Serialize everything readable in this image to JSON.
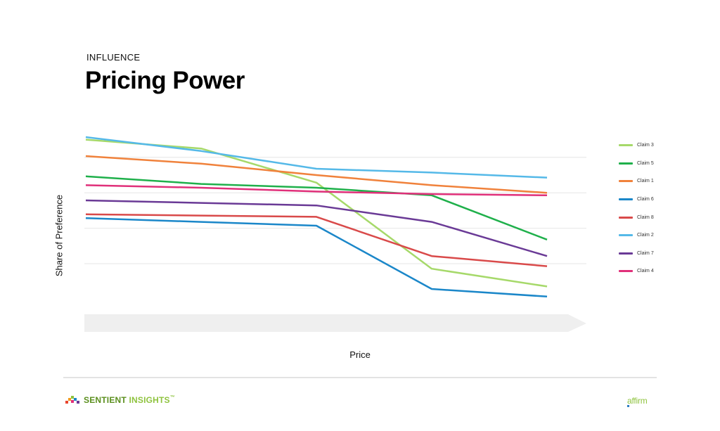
{
  "header": {
    "eyebrow": "INFLUENCE",
    "title": "Pricing Power"
  },
  "chart_data": {
    "type": "line",
    "title": "Pricing Power",
    "xlabel": "Price",
    "ylabel": "Share of Preference",
    "x": [
      1,
      2,
      3,
      4,
      5
    ],
    "ylim": [
      0,
      7
    ],
    "grid": true,
    "legend_position": "right",
    "series": [
      {
        "name": "Claim 3",
        "color": "#a6d96a",
        "values": [
          6.9,
          6.55,
          5.2,
          1.8,
          1.1
        ]
      },
      {
        "name": "Claim 5",
        "color": "#1fb04b",
        "values": [
          5.45,
          5.15,
          5.0,
          4.7,
          2.95
        ]
      },
      {
        "name": "Claim 1",
        "color": "#f0823c",
        "values": [
          6.25,
          5.95,
          5.5,
          5.1,
          4.8
        ]
      },
      {
        "name": "Claim 6",
        "color": "#1b87c9",
        "values": [
          3.8,
          3.65,
          3.5,
          1.0,
          0.7
        ]
      },
      {
        "name": "Claim 8",
        "color": "#d94a4a",
        "values": [
          3.95,
          3.9,
          3.85,
          2.3,
          1.9
        ]
      },
      {
        "name": "Claim 2",
        "color": "#55b9e8",
        "values": [
          7.0,
          6.45,
          5.75,
          5.6,
          5.4
        ]
      },
      {
        "name": "Claim 7",
        "color": "#6a3a96",
        "values": [
          4.5,
          4.4,
          4.3,
          3.65,
          2.3
        ]
      },
      {
        "name": "Claim 4",
        "color": "#e0307a",
        "values": [
          5.1,
          5.0,
          4.85,
          4.75,
          4.7
        ]
      }
    ]
  },
  "legend": [
    "Claim 3",
    "Claim 5",
    "Claim 1",
    "Claim 6",
    "Claim 8",
    "Claim 2",
    "Claim 7",
    "Claim 4"
  ],
  "footer": {
    "brand_part1": "SENTIENT ",
    "brand_part2": "INSIGHTS",
    "brand_tm": "™",
    "partner": "affirm"
  }
}
